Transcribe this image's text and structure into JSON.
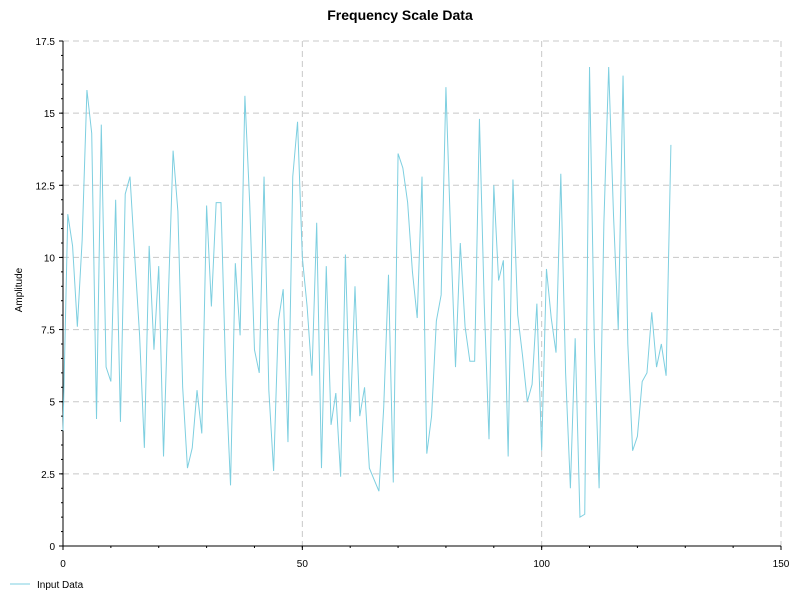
{
  "chart_data": {
    "type": "line",
    "title": "Frequency Scale Data",
    "xlabel": "",
    "ylabel": "Amplitude",
    "xlim": [
      0,
      150
    ],
    "ylim": [
      0,
      17.5
    ],
    "xticks": [
      0,
      50,
      100,
      150
    ],
    "yticks": [
      0,
      2.5,
      5,
      7.5,
      10,
      12.5,
      15,
      17.5
    ],
    "xtick_labels": [
      "0",
      "50",
      "100",
      "150"
    ],
    "ytick_labels": [
      "0",
      "2.5",
      "5",
      "7.5",
      "10",
      "12.5",
      "15",
      "17.5"
    ],
    "grid": true,
    "legend_position": "bottom-left",
    "series": [
      {
        "name": "Input Data",
        "color": "#7ecfe0",
        "x": [
          0,
          1,
          2,
          3,
          4,
          5,
          6,
          7,
          8,
          9,
          10,
          11,
          12,
          13,
          14,
          15,
          16,
          17,
          18,
          19,
          20,
          21,
          22,
          23,
          24,
          25,
          26,
          27,
          28,
          29,
          30,
          31,
          32,
          33,
          34,
          35,
          36,
          37,
          38,
          39,
          40,
          41,
          42,
          43,
          44,
          45,
          46,
          47,
          48,
          49,
          50,
          51,
          52,
          53,
          54,
          55,
          56,
          57,
          58,
          59,
          60,
          61,
          62,
          63,
          64,
          65,
          66,
          67,
          68,
          69,
          70,
          71,
          72,
          73,
          74,
          75,
          76,
          77,
          78,
          79,
          80,
          81,
          82,
          83,
          84,
          85,
          86,
          87,
          88,
          89,
          90,
          91,
          92,
          93,
          94,
          95,
          96,
          97,
          98,
          99,
          100,
          101,
          102,
          103,
          104,
          105,
          106,
          107,
          108,
          109,
          110,
          111,
          112,
          113,
          114,
          115,
          116,
          117,
          118,
          119,
          120,
          121,
          122,
          123,
          124,
          125,
          126,
          127
        ],
        "y": [
          4.0,
          11.5,
          10.4,
          7.6,
          10.6,
          15.8,
          14.3,
          4.4,
          14.6,
          6.2,
          5.7,
          12.0,
          4.3,
          12.2,
          12.8,
          10.0,
          7.3,
          3.4,
          10.4,
          6.8,
          9.7,
          3.1,
          8.6,
          13.7,
          11.6,
          5.5,
          2.7,
          3.4,
          5.4,
          3.9,
          11.8,
          8.3,
          11.9,
          11.9,
          5.9,
          2.1,
          9.8,
          7.3,
          15.6,
          11.9,
          6.8,
          6.0,
          12.8,
          5.4,
          2.6,
          7.8,
          8.9,
          3.6,
          12.8,
          14.7,
          10.0,
          8.3,
          5.9,
          11.2,
          2.7,
          9.7,
          4.2,
          5.3,
          2.4,
          10.1,
          4.3,
          9.0,
          4.5,
          5.5,
          2.7,
          2.3,
          1.9,
          4.8,
          9.4,
          2.2,
          13.6,
          13.1,
          11.9,
          9.5,
          7.9,
          12.8,
          3.2,
          4.5,
          7.8,
          8.7,
          15.9,
          10.7,
          6.2,
          10.5,
          7.6,
          6.4,
          6.4,
          14.8,
          8.4,
          3.7,
          12.5,
          9.2,
          9.9,
          3.1,
          12.7,
          8.0,
          6.6,
          5.0,
          5.6,
          8.4,
          3.3,
          9.6,
          7.9,
          6.7,
          12.9,
          6.0,
          2.0,
          7.2,
          1.0,
          1.1,
          16.6,
          7.1,
          2.0,
          11.2,
          16.6,
          11.5,
          7.5,
          16.3,
          7.0,
          3.3,
          3.8,
          5.7,
          6.0,
          8.1,
          6.2,
          7.0,
          5.9,
          13.9
        ]
      }
    ]
  }
}
